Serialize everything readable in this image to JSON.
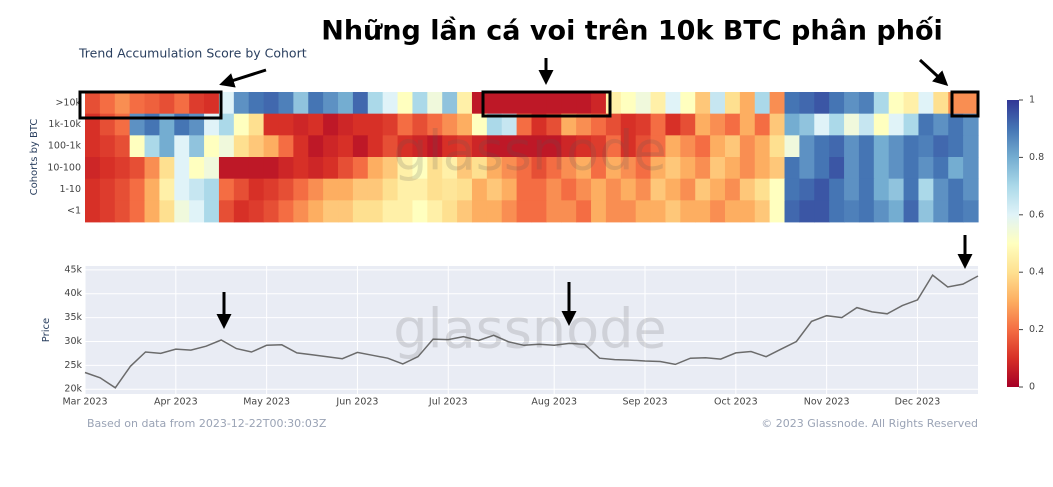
{
  "headline": "Những lần cá voi trên 10k BTC phân phối",
  "watermark": "glassnode",
  "source_note": "Based on data from 2023-12-22T00:30:03Z",
  "copyright": "© 2023 Glassnode. All Rights Reserved",
  "chart_data": [
    {
      "type": "heatmap",
      "title": "Trend Accumulation Score by Cohort",
      "y_label": "Cohorts by BTC",
      "rows": [
        ">10k",
        "1k-10k",
        "100-1k",
        "10-100",
        "1-10",
        "<1"
      ],
      "z": [
        [
          0.15,
          0.2,
          0.25,
          0.2,
          0.18,
          0.15,
          0.2,
          0.12,
          0.1,
          0.6,
          0.85,
          0.9,
          0.92,
          0.88,
          0.75,
          0.9,
          0.85,
          0.8,
          0.92,
          0.7,
          0.6,
          0.5,
          0.7,
          0.55,
          0.75,
          0.45,
          0.05,
          0.05,
          0.05,
          0.05,
          0.05,
          0.05,
          0.05,
          0.05,
          0.08,
          0.45,
          0.5,
          0.55,
          0.45,
          0.6,
          0.5,
          0.35,
          0.65,
          0.4,
          0.3,
          0.7,
          0.25,
          0.9,
          0.92,
          0.95,
          0.9,
          0.85,
          0.88,
          0.7,
          0.5,
          0.45,
          0.6,
          0.4,
          0.25,
          0.25
        ],
        [
          0.1,
          0.15,
          0.2,
          0.85,
          0.9,
          0.8,
          0.9,
          0.85,
          0.6,
          0.7,
          0.5,
          0.4,
          0.1,
          0.1,
          0.08,
          0.1,
          0.05,
          0.08,
          0.1,
          0.1,
          0.12,
          0.2,
          0.15,
          0.2,
          0.25,
          0.3,
          0.5,
          0.7,
          0.65,
          0.2,
          0.1,
          0.15,
          0.3,
          0.25,
          0.2,
          0.15,
          0.1,
          0.12,
          0.2,
          0.1,
          0.15,
          0.3,
          0.25,
          0.2,
          0.3,
          0.2,
          0.35,
          0.8,
          0.75,
          0.6,
          0.7,
          0.55,
          0.65,
          0.5,
          0.6,
          0.7,
          0.9,
          0.85,
          0.9,
          0.85
        ],
        [
          0.1,
          0.12,
          0.15,
          0.5,
          0.7,
          0.8,
          0.6,
          0.75,
          0.5,
          0.55,
          0.4,
          0.35,
          0.3,
          0.2,
          0.1,
          0.05,
          0.08,
          0.1,
          0.05,
          0.1,
          0.15,
          0.1,
          0.08,
          0.05,
          0.1,
          0.12,
          0.08,
          0.05,
          0.05,
          0.05,
          0.05,
          0.05,
          0.08,
          0.1,
          0.12,
          0.2,
          0.1,
          0.15,
          0.2,
          0.3,
          0.25,
          0.2,
          0.3,
          0.35,
          0.25,
          0.3,
          0.4,
          0.55,
          0.85,
          0.9,
          0.92,
          0.85,
          0.9,
          0.8,
          0.85,
          0.9,
          0.88,
          0.92,
          0.9,
          0.85
        ],
        [
          0.08,
          0.1,
          0.12,
          0.15,
          0.25,
          0.4,
          0.6,
          0.5,
          0.55,
          0.05,
          0.05,
          0.05,
          0.05,
          0.08,
          0.1,
          0.08,
          0.1,
          0.15,
          0.2,
          0.3,
          0.35,
          0.45,
          0.5,
          0.4,
          0.45,
          0.35,
          0.4,
          0.3,
          0.25,
          0.2,
          0.15,
          0.2,
          0.25,
          0.3,
          0.2,
          0.3,
          0.25,
          0.2,
          0.3,
          0.35,
          0.3,
          0.25,
          0.35,
          0.3,
          0.25,
          0.3,
          0.35,
          0.9,
          0.85,
          0.9,
          0.95,
          0.85,
          0.9,
          0.8,
          0.85,
          0.9,
          0.85,
          0.9,
          0.8,
          0.85
        ],
        [
          0.1,
          0.12,
          0.15,
          0.2,
          0.3,
          0.45,
          0.6,
          0.65,
          0.7,
          0.2,
          0.15,
          0.1,
          0.12,
          0.15,
          0.2,
          0.25,
          0.3,
          0.3,
          0.35,
          0.35,
          0.4,
          0.45,
          0.45,
          0.4,
          0.42,
          0.4,
          0.3,
          0.35,
          0.3,
          0.2,
          0.2,
          0.25,
          0.2,
          0.25,
          0.3,
          0.25,
          0.3,
          0.25,
          0.35,
          0.3,
          0.25,
          0.35,
          0.3,
          0.25,
          0.35,
          0.4,
          0.5,
          0.9,
          0.92,
          0.95,
          0.9,
          0.85,
          0.9,
          0.8,
          0.75,
          0.9,
          0.7,
          0.85,
          0.9,
          0.85
        ],
        [
          0.1,
          0.12,
          0.15,
          0.2,
          0.3,
          0.4,
          0.55,
          0.6,
          0.7,
          0.15,
          0.1,
          0.12,
          0.15,
          0.2,
          0.25,
          0.3,
          0.35,
          0.35,
          0.4,
          0.4,
          0.45,
          0.45,
          0.5,
          0.45,
          0.4,
          0.35,
          0.3,
          0.3,
          0.25,
          0.2,
          0.2,
          0.25,
          0.25,
          0.2,
          0.3,
          0.25,
          0.25,
          0.3,
          0.3,
          0.35,
          0.3,
          0.3,
          0.25,
          0.3,
          0.3,
          0.35,
          0.5,
          0.92,
          0.95,
          0.95,
          0.9,
          0.88,
          0.9,
          0.85,
          0.8,
          0.92,
          0.75,
          0.85,
          0.9,
          0.88
        ]
      ],
      "zlim": [
        0,
        1
      ],
      "zticks": [
        0,
        0.2,
        0.4,
        0.6,
        0.8,
        1
      ],
      "colorscale": [
        "#a50026",
        "#d73027",
        "#f46d43",
        "#fdae61",
        "#fee090",
        "#ffffbf",
        "#e0f3f8",
        "#abd9e9",
        "#74add1",
        "#4575b4",
        "#313695"
      ]
    },
    {
      "type": "line",
      "y_label": "Price",
      "color": "#6b6b6b",
      "plot_bg": "#e9ecf4",
      "grid": true,
      "categories": [
        "Mar 2023",
        null,
        null,
        null,
        null,
        null,
        "Apr 2023",
        null,
        null,
        null,
        null,
        null,
        "May 2023",
        null,
        null,
        null,
        null,
        null,
        "Jun 2023",
        null,
        null,
        null,
        null,
        null,
        "Jul 2023",
        null,
        null,
        null,
        null,
        null,
        null,
        "Aug 2023",
        null,
        null,
        null,
        null,
        null,
        "Sep 2023",
        null,
        null,
        null,
        null,
        null,
        "Oct 2023",
        null,
        null,
        null,
        null,
        null,
        "Nov 2023",
        null,
        null,
        null,
        null,
        null,
        "Dec 2023",
        null,
        null,
        null,
        null
      ],
      "values": [
        23500,
        22400,
        20300,
        24800,
        27800,
        27500,
        28400,
        28200,
        29000,
        30300,
        28500,
        27800,
        29200,
        29300,
        27600,
        27200,
        26800,
        26400,
        27700,
        27100,
        26500,
        25300,
        26800,
        30500,
        30400,
        31000,
        30200,
        31300,
        29900,
        29200,
        29400,
        29200,
        29600,
        29400,
        26500,
        26200,
        26100,
        25900,
        25800,
        25200,
        26500,
        26600,
        26300,
        27600,
        27900,
        26800,
        28400,
        30000,
        34200,
        35400,
        35000,
        37100,
        36200,
        35800,
        37500,
        38700,
        43900,
        41400,
        42000,
        43700
      ],
      "ylim": [
        19000,
        45800
      ],
      "yticks": [
        {
          "value": 20000,
          "label": "20k"
        },
        {
          "value": 25000,
          "label": "25k"
        },
        {
          "value": 30000,
          "label": "30k"
        },
        {
          "value": 35000,
          "label": "35k"
        },
        {
          "value": 40000,
          "label": "40k"
        },
        {
          "value": 45000,
          "label": "45k"
        }
      ]
    }
  ]
}
